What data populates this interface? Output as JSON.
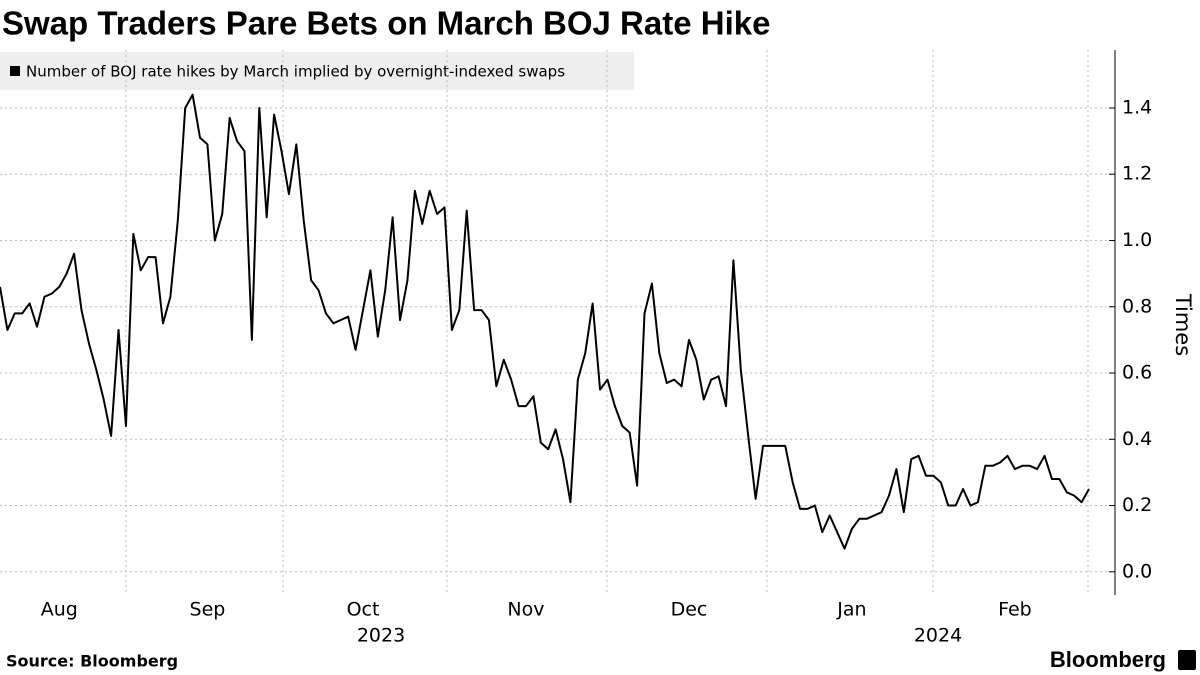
{
  "chart_data": {
    "type": "line",
    "title": "Swap Traders Pare Bets on March BOJ Rate Hike",
    "y_axis_label": "Times",
    "source": "Source: Bloomberg",
    "brand": "Bloomberg",
    "year_labels": [
      "2023",
      "2024"
    ],
    "categories": [
      null,
      null,
      null,
      null,
      null,
      null,
      null,
      null,
      "Aug",
      null,
      null,
      null,
      null,
      null,
      null,
      null,
      null,
      null,
      null,
      null,
      null,
      null,
      null,
      null,
      null,
      null,
      null,
      null,
      "Sep",
      null,
      null,
      null,
      null,
      null,
      null,
      null,
      null,
      null,
      null,
      null,
      null,
      null,
      null,
      null,
      null,
      null,
      null,
      null,
      null,
      "Oct",
      null,
      null,
      null,
      null,
      null,
      null,
      null,
      null,
      null,
      null,
      null,
      null,
      null,
      null,
      null,
      null,
      null,
      null,
      null,
      null,
      null,
      "Nov",
      null,
      null,
      null,
      null,
      null,
      null,
      null,
      null,
      null,
      null,
      null,
      null,
      null,
      null,
      null,
      null,
      null,
      null,
      null,
      null,
      null,
      "Dec",
      null,
      null,
      null,
      null,
      null,
      null,
      null,
      null,
      null,
      null,
      null,
      null,
      null,
      null,
      null,
      null,
      null,
      null,
      null,
      null,
      null,
      "Jan",
      null,
      null,
      null,
      null,
      null,
      null,
      null,
      null,
      null,
      null,
      null,
      null,
      null,
      null,
      null,
      null,
      null,
      null,
      null,
      null,
      null,
      "Feb",
      null,
      null,
      null,
      null,
      null,
      null,
      null,
      null,
      null,
      null
    ],
    "series": [
      {
        "name": "Number of BOJ rate hikes by March implied by overnight-indexed swaps",
        "color": "#000000",
        "values": [
          0.86,
          0.73,
          0.78,
          0.78,
          0.81,
          0.74,
          0.83,
          0.84,
          0.86,
          0.9,
          0.96,
          0.79,
          0.69,
          0.61,
          0.52,
          0.41,
          0.73,
          0.44,
          1.02,
          0.91,
          0.95,
          0.95,
          0.75,
          0.83,
          1.06,
          1.4,
          1.44,
          1.31,
          1.29,
          1.0,
          1.08,
          1.37,
          1.3,
          1.27,
          0.7,
          1.4,
          1.07,
          1.38,
          1.27,
          1.14,
          1.29,
          1.06,
          0.88,
          0.85,
          0.78,
          0.75,
          0.76,
          0.77,
          0.67,
          0.79,
          0.91,
          0.71,
          0.85,
          1.07,
          0.76,
          0.88,
          1.15,
          1.05,
          1.15,
          1.08,
          1.1,
          0.73,
          0.79,
          1.09,
          0.79,
          0.79,
          0.76,
          0.56,
          0.64,
          0.58,
          0.5,
          0.5,
          0.53,
          0.39,
          0.37,
          0.43,
          0.34,
          0.21,
          0.58,
          0.66,
          0.81,
          0.55,
          0.58,
          0.5,
          0.44,
          0.42,
          0.26,
          0.78,
          0.87,
          0.66,
          0.57,
          0.58,
          0.56,
          0.7,
          0.64,
          0.52,
          0.58,
          0.59,
          0.5,
          0.94,
          0.61,
          0.41,
          0.22,
          0.38,
          0.38,
          0.38,
          0.38,
          0.27,
          0.19,
          0.19,
          0.2,
          0.12,
          0.17,
          0.12,
          0.07,
          0.13,
          0.16,
          0.16,
          0.17,
          0.18,
          0.23,
          0.31,
          0.18,
          0.34,
          0.35,
          0.29,
          0.29,
          0.27,
          0.2,
          0.2,
          0.25,
          0.2,
          0.21,
          0.32,
          0.32,
          0.33,
          0.35,
          0.31,
          0.32,
          0.32,
          0.31,
          0.35,
          0.28,
          0.28,
          0.24,
          0.23,
          0.21,
          0.25
        ]
      }
    ],
    "ylim": [
      -0.07,
      1.575
    ],
    "yticks": [
      {
        "value": 0,
        "label": "0.0"
      },
      0.2,
      0.4,
      0.6,
      0.8,
      {
        "value": 1,
        "label": "1.0"
      },
      1.2,
      1.4
    ],
    "grid": true
  }
}
